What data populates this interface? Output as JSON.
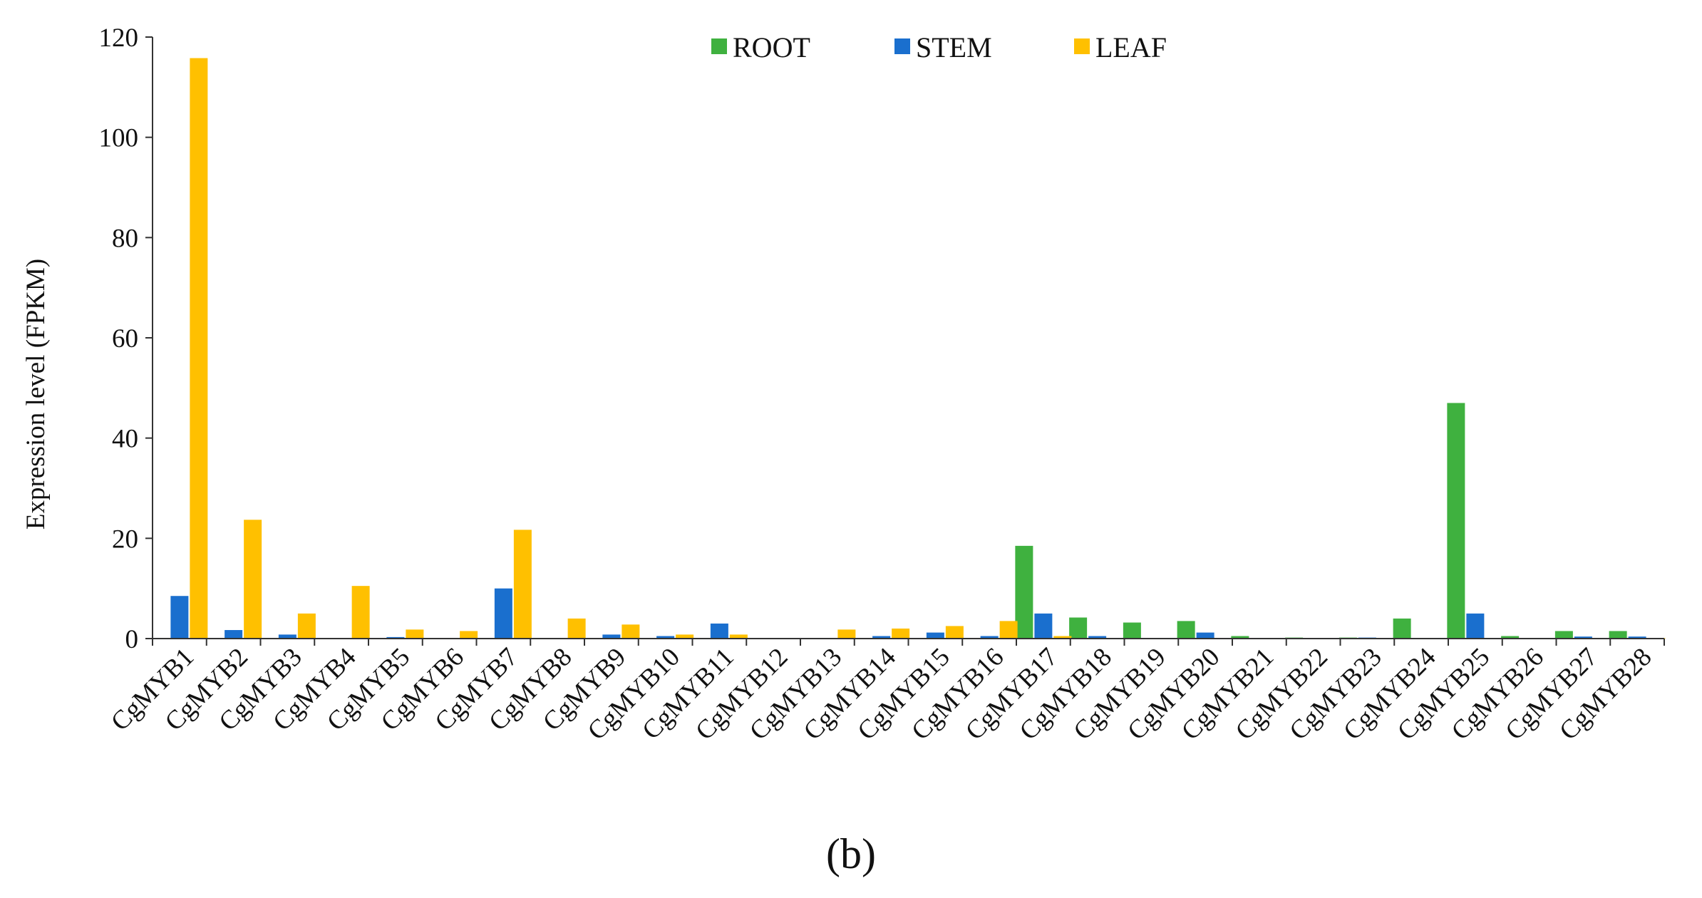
{
  "chart_data": {
    "type": "bar",
    "title": "",
    "xlabel": "",
    "ylabel": "Expression level (FPKM)",
    "ylim": [
      0,
      120
    ],
    "yticks": [
      0,
      20,
      40,
      60,
      80,
      100,
      120
    ],
    "grid": false,
    "legend_position": "top",
    "categories": [
      "CgMYB1",
      "CgMYB2",
      "CgMYB3",
      "CgMYB4",
      "CgMYB5",
      "CgMYB6",
      "CgMYB7",
      "CgMYB8",
      "CgMYB9",
      "CgMYB10",
      "CgMYB11",
      "CgMYB12",
      "CgMYB13",
      "CgMYB14",
      "CgMYB15",
      "CgMYB16",
      "CgMYB17",
      "CgMYB18",
      "CgMYB19",
      "CgMYB20",
      "CgMYB21",
      "CgMYB22",
      "CgMYB23",
      "CgMYB24",
      "CgMYB25",
      "CgMYB26",
      "CgMYB27",
      "CgMYB28"
    ],
    "series": [
      {
        "name": "ROOT",
        "color": "#3fb13f",
        "values": [
          0,
          0,
          0,
          0,
          0,
          0,
          0,
          0,
          0,
          0,
          0,
          0,
          0,
          0,
          0,
          0,
          18.5,
          4.2,
          3.2,
          3.5,
          0.5,
          0.2,
          0.2,
          4.0,
          47.0,
          0.5,
          1.5,
          1.5
        ]
      },
      {
        "name": "STEM",
        "color": "#1a6fce",
        "values": [
          8.5,
          1.7,
          0.8,
          0.1,
          0.3,
          0.1,
          10.0,
          0.1,
          0.8,
          0.5,
          3.0,
          0.1,
          0.1,
          0.5,
          1.2,
          0.5,
          5.0,
          0.5,
          0.1,
          1.2,
          0.1,
          0.1,
          0.2,
          0.1,
          5.0,
          0.1,
          0.4,
          0.4
        ]
      },
      {
        "name": "LEAF",
        "color": "#ffc000",
        "values": [
          115.8,
          23.7,
          5.0,
          10.5,
          1.8,
          1.5,
          21.7,
          4.0,
          2.8,
          0.8,
          0.8,
          0.1,
          1.8,
          2.0,
          2.5,
          3.5,
          0.5,
          0.1,
          0.1,
          0.1,
          0.1,
          0.1,
          0.1,
          0.1,
          0.1,
          0.1,
          0.1,
          0.1
        ]
      }
    ]
  },
  "panel_label": "(b)"
}
